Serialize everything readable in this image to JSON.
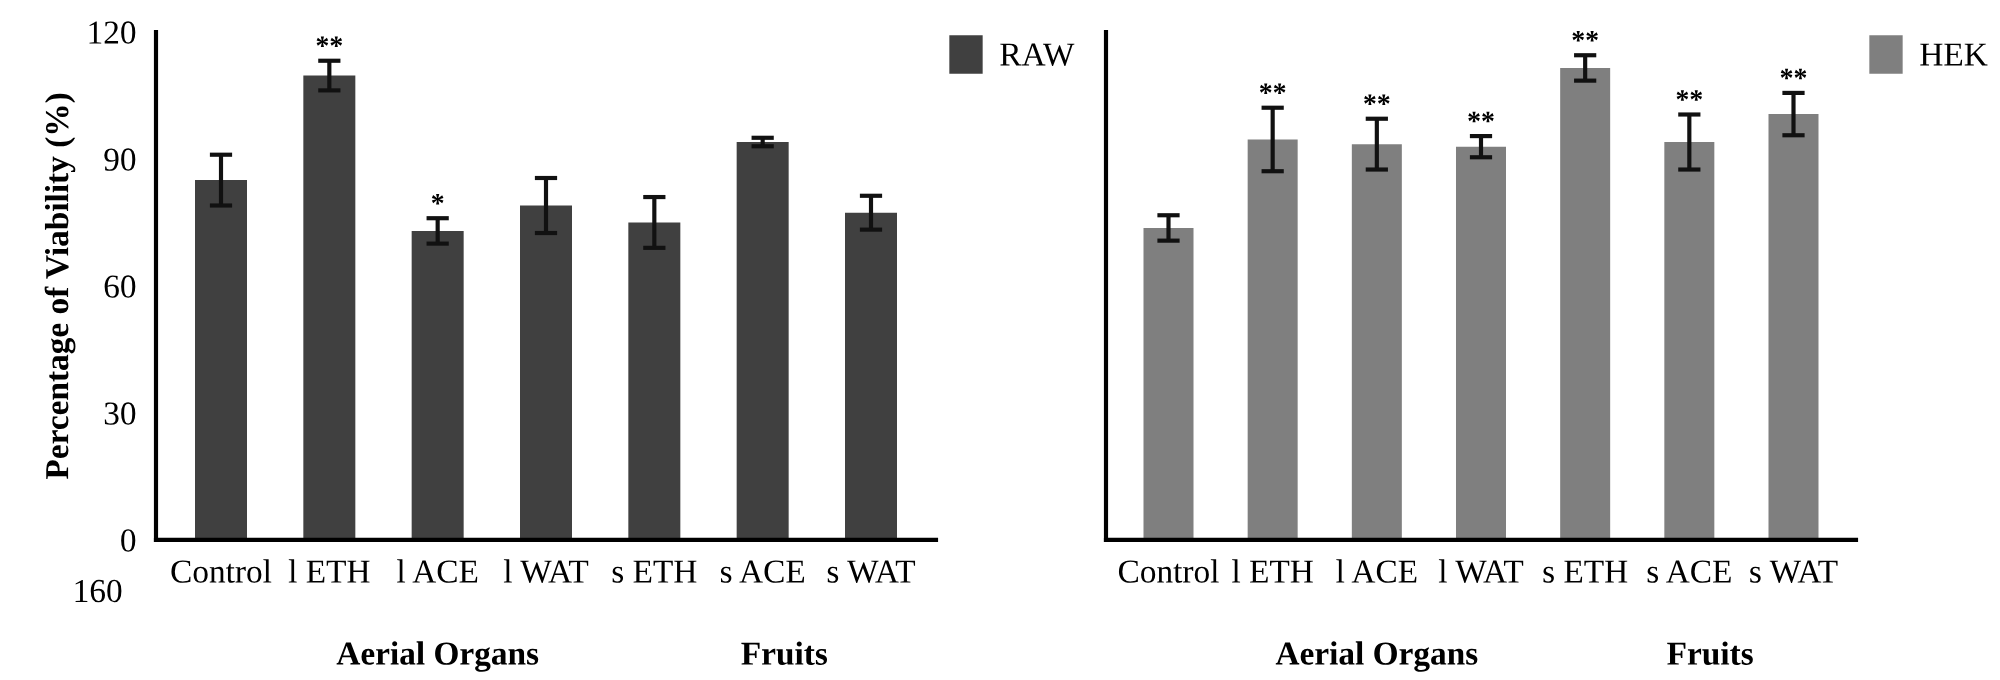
{
  "chart_data": [
    {
      "type": "bar",
      "ylabel": "Percentage of Viability (%)",
      "categories": [
        "Control",
        "l ETH",
        "l ACE",
        "l WAT",
        "s ETH",
        "s ACE",
        "s WAT"
      ],
      "series": [
        {
          "name": "RAW",
          "color": "#404040",
          "values": [
            85,
            109.7,
            73,
            79,
            75,
            94,
            77.3
          ],
          "errors": [
            6,
            3.5,
            3,
            6.5,
            6,
            1,
            4
          ]
        }
      ],
      "ylim": [
        0,
        120
      ],
      "yticks": [
        0,
        30,
        60,
        90,
        120
      ],
      "grid": false,
      "legend": "top right",
      "annotations": [
        {
          "text": "**",
          "x": "l ETH",
          "y": 113.2
        },
        {
          "text": "*",
          "x": "l ACE",
          "y": 76
        },
        "160",
        "Aerial Organs",
        "Fruits"
      ]
    },
    {
      "type": "bar",
      "categories": [
        "Control",
        "l ETH",
        "l ACE",
        "l WAT",
        "s ETH",
        "s ACE",
        "s WAT"
      ],
      "series": [
        {
          "name": "HEK",
          "color": "#7f7f7f",
          "values": [
            73.7,
            94.6,
            93.5,
            92.9,
            111.5,
            94,
            100.6
          ],
          "errors": [
            3,
            7.5,
            6,
            2.5,
            3,
            6.5,
            5
          ]
        }
      ],
      "ylim": [
        0,
        120
      ],
      "tick_labels": "x",
      "grid": false,
      "legend": "top right",
      "annotations": [
        {
          "text": "**",
          "x": "l ETH",
          "y": 102.1
        },
        {
          "text": "**",
          "x": "l ACE",
          "y": 99.5
        },
        {
          "text": "**",
          "x": "l WAT",
          "y": 95.4
        },
        {
          "text": "**",
          "x": "s ETH",
          "y": 114.5
        },
        {
          "text": "**",
          "x": "s ACE",
          "y": 100.5
        },
        {
          "text": "**",
          "x": "s WAT",
          "y": 105.6
        },
        "Aerial Organs",
        "Fruits"
      ]
    }
  ]
}
